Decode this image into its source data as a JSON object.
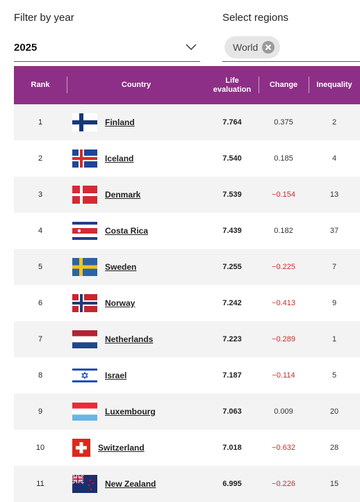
{
  "filters": {
    "year_label": "Filter by year",
    "year_value": "2025",
    "region_label": "Select regions",
    "region_chip": "World"
  },
  "table": {
    "headers": {
      "rank": "Rank",
      "country": "Country",
      "life": "Life evaluation",
      "change": "Change",
      "inequality": "Inequality"
    },
    "rows": [
      {
        "rank": "1",
        "country": "Finland",
        "life": "7.764",
        "change": "0.375",
        "inequality": "2",
        "flag": "flag-finland-icon"
      },
      {
        "rank": "2",
        "country": "Iceland",
        "life": "7.540",
        "change": "0.185",
        "inequality": "4",
        "flag": "flag-iceland-icon"
      },
      {
        "rank": "3",
        "country": "Denmark",
        "life": "7.539",
        "change": "−0.154",
        "inequality": "13",
        "flag": "flag-denmark-icon"
      },
      {
        "rank": "4",
        "country": "Costa Rica",
        "life": "7.439",
        "change": "0.182",
        "inequality": "37",
        "flag": "flag-costa-rica-icon"
      },
      {
        "rank": "5",
        "country": "Sweden",
        "life": "7.255",
        "change": "−0.225",
        "inequality": "7",
        "flag": "flag-sweden-icon"
      },
      {
        "rank": "6",
        "country": "Norway",
        "life": "7.242",
        "change": "−0.413",
        "inequality": "9",
        "flag": "flag-norway-icon"
      },
      {
        "rank": "7",
        "country": "Netherlands",
        "life": "7.223",
        "change": "−0.289",
        "inequality": "1",
        "flag": "flag-netherlands-icon"
      },
      {
        "rank": "8",
        "country": "Israel",
        "life": "7.187",
        "change": "−0.114",
        "inequality": "5",
        "flag": "flag-israel-icon"
      },
      {
        "rank": "9",
        "country": "Luxembourg",
        "life": "7.063",
        "change": "0.009",
        "inequality": "20",
        "flag": "flag-luxembourg-icon"
      },
      {
        "rank": "10",
        "country": "Switzerland",
        "life": "7.018",
        "change": "−0.632",
        "inequality": "28",
        "flag": "flag-switzerland-icon"
      },
      {
        "rank": "11",
        "country": "New Zealand",
        "life": "6.995",
        "change": "−0.226",
        "inequality": "15",
        "flag": "flag-new-zealand-icon"
      }
    ]
  },
  "colors": {
    "header_bg": "#8d2f86",
    "row_shade": "#f3f3f3",
    "negative_change": "#cc2b2b"
  }
}
